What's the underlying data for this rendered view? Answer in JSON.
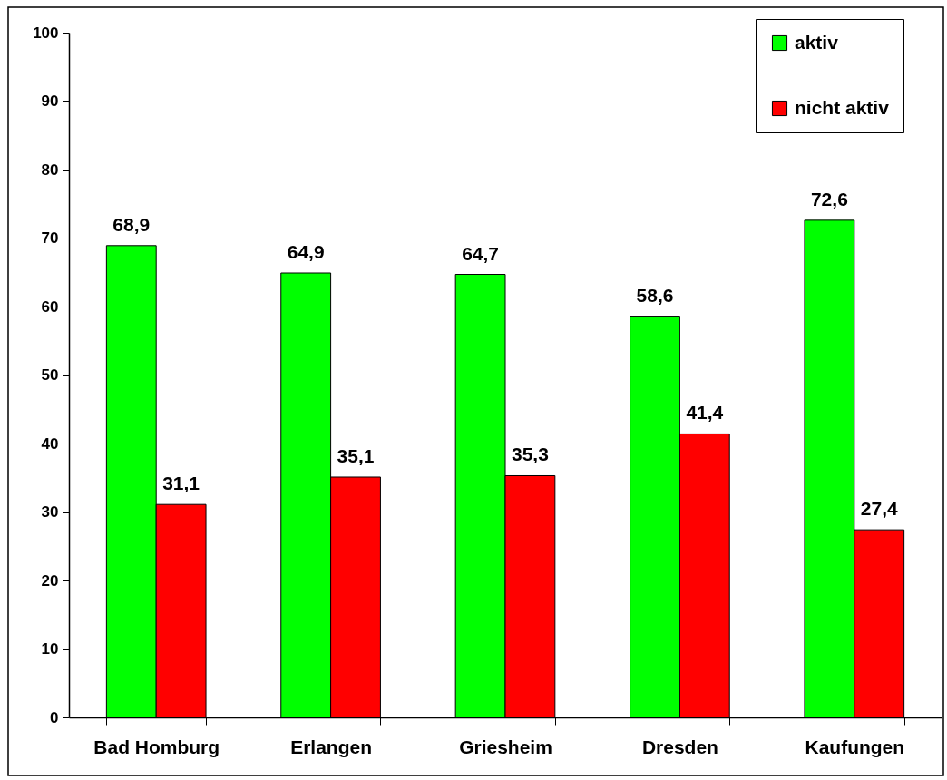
{
  "chart_data": {
    "type": "bar",
    "categories": [
      "Bad Homburg",
      "Erlangen",
      "Griesheim",
      "Dresden",
      "Kaufungen"
    ],
    "series": [
      {
        "name": "aktiv",
        "color": "#00ff00",
        "values": [
          68.9,
          64.9,
          64.7,
          58.6,
          72.6
        ],
        "value_labels": [
          "68,9",
          "64,9",
          "64,7",
          "58,6",
          "72,6"
        ]
      },
      {
        "name": "nicht aktiv",
        "color": "#ff0000",
        "values": [
          31.1,
          35.1,
          35.3,
          41.4,
          27.4
        ],
        "value_labels": [
          "31,1",
          "35,1",
          "35,3",
          "41,4",
          "27,4"
        ]
      }
    ],
    "ylim": [
      0,
      100
    ],
    "yticks": [
      0,
      10,
      20,
      30,
      40,
      50,
      60,
      70,
      80,
      90,
      100
    ],
    "grid": false,
    "legend": "top right"
  }
}
